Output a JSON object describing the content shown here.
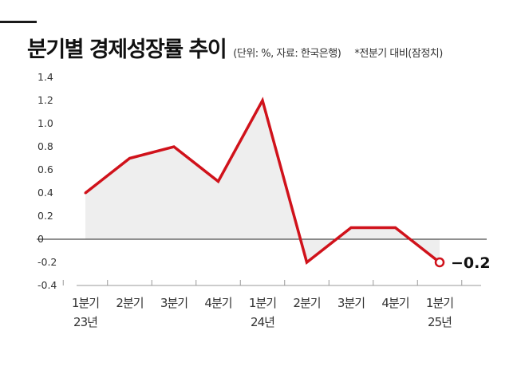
{
  "header": {
    "title": "분기별 경제성장률 추이",
    "note": "(단위: %, 자료: 한국은행)",
    "note2": "*전분기 대비(잠정치)"
  },
  "chart_data": {
    "type": "area",
    "categories": [
      [
        "1분기",
        "23년"
      ],
      [
        "2분기",
        ""
      ],
      [
        "3분기",
        ""
      ],
      [
        "4분기",
        ""
      ],
      [
        "1분기",
        "24년"
      ],
      [
        "2분기",
        ""
      ],
      [
        "3분기",
        ""
      ],
      [
        "4분기",
        ""
      ],
      [
        "1분기",
        "25년"
      ]
    ],
    "values": [
      0.4,
      0.7,
      0.8,
      0.5,
      1.2,
      -0.2,
      0.1,
      0.1,
      -0.2
    ],
    "ylim": [
      -0.4,
      1.4
    ],
    "yticks": [
      "1.4",
      "1.2",
      "1.0",
      "0.8",
      "0.6",
      "0.4",
      "0.2",
      "0",
      "-0.2",
      "-0.4"
    ],
    "last_value_label": "−0.2",
    "line_color": "#d0121b",
    "fill_color": "#eeeeee",
    "grid": false
  }
}
